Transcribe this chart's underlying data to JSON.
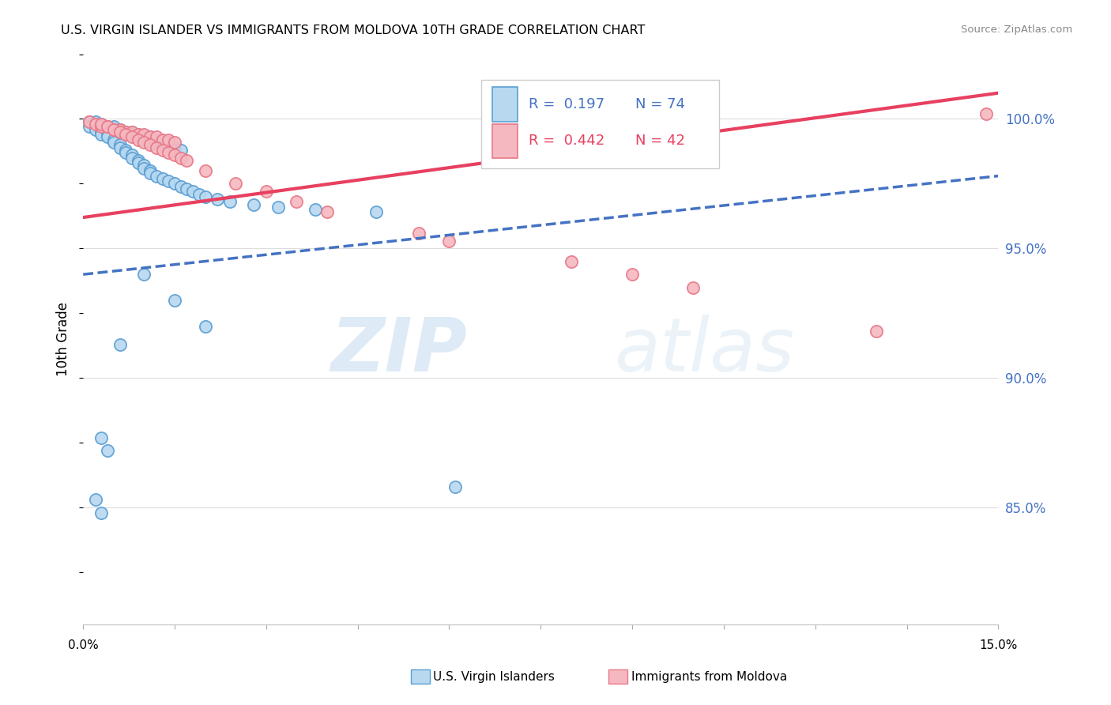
{
  "title": "U.S. VIRGIN ISLANDER VS IMMIGRANTS FROM MOLDOVA 10TH GRADE CORRELATION CHART",
  "source": "Source: ZipAtlas.com",
  "ylabel": "10th Grade",
  "yaxis_labels": [
    "100.0%",
    "95.0%",
    "90.0%",
    "85.0%"
  ],
  "yaxis_values": [
    1.0,
    0.95,
    0.9,
    0.85
  ],
  "xmin": 0.0,
  "xmax": 0.15,
  "ymin": 0.805,
  "ymax": 1.025,
  "color_blue_face": "#b8d8f0",
  "color_blue_edge": "#5a9fd4",
  "color_pink_face": "#f5b8c0",
  "color_pink_edge": "#e87888",
  "color_blue_line": "#4472c4",
  "color_pink_line": "#e84060",
  "watermark_zip": "ZIP",
  "watermark_atlas": "atlas",
  "blue_x": [
    0.001,
    0.002,
    0.002,
    0.003,
    0.003,
    0.004,
    0.004,
    0.005,
    0.005,
    0.006,
    0.006,
    0.007,
    0.007,
    0.008,
    0.008,
    0.009,
    0.009,
    0.01,
    0.01,
    0.011,
    0.011,
    0.012,
    0.012,
    0.013,
    0.013,
    0.014,
    0.014,
    0.015,
    0.015,
    0.016,
    0.001,
    0.002,
    0.003,
    0.003,
    0.004,
    0.004,
    0.005,
    0.005,
    0.006,
    0.006,
    0.007,
    0.007,
    0.008,
    0.008,
    0.009,
    0.009,
    0.01,
    0.01,
    0.011,
    0.011,
    0.012,
    0.013,
    0.014,
    0.015,
    0.016,
    0.017,
    0.018,
    0.019,
    0.02,
    0.022,
    0.024,
    0.028,
    0.032,
    0.038,
    0.048,
    0.01,
    0.015,
    0.02,
    0.003,
    0.004,
    0.002,
    0.003,
    0.061,
    0.006
  ],
  "blue_y": [
    0.999,
    0.999,
    0.998,
    0.998,
    0.997,
    0.997,
    0.996,
    0.997,
    0.996,
    0.996,
    0.995,
    0.995,
    0.994,
    0.995,
    0.994,
    0.994,
    0.993,
    0.993,
    0.992,
    0.992,
    0.993,
    0.991,
    0.992,
    0.991,
    0.99,
    0.99,
    0.991,
    0.989,
    0.988,
    0.988,
    0.997,
    0.996,
    0.995,
    0.994,
    0.994,
    0.993,
    0.992,
    0.991,
    0.99,
    0.989,
    0.988,
    0.987,
    0.986,
    0.985,
    0.984,
    0.983,
    0.982,
    0.981,
    0.98,
    0.979,
    0.978,
    0.977,
    0.976,
    0.975,
    0.974,
    0.973,
    0.972,
    0.971,
    0.97,
    0.969,
    0.968,
    0.967,
    0.966,
    0.965,
    0.964,
    0.94,
    0.93,
    0.92,
    0.877,
    0.872,
    0.853,
    0.848,
    0.858,
    0.913
  ],
  "pink_x": [
    0.001,
    0.002,
    0.003,
    0.004,
    0.005,
    0.006,
    0.007,
    0.008,
    0.009,
    0.01,
    0.011,
    0.012,
    0.013,
    0.014,
    0.015,
    0.003,
    0.004,
    0.005,
    0.006,
    0.007,
    0.008,
    0.009,
    0.01,
    0.011,
    0.012,
    0.013,
    0.014,
    0.015,
    0.016,
    0.017,
    0.02,
    0.025,
    0.03,
    0.035,
    0.04,
    0.055,
    0.06,
    0.08,
    0.09,
    0.1,
    0.13,
    0.148
  ],
  "pink_y": [
    0.999,
    0.998,
    0.997,
    0.997,
    0.996,
    0.996,
    0.995,
    0.995,
    0.994,
    0.994,
    0.993,
    0.993,
    0.992,
    0.992,
    0.991,
    0.998,
    0.997,
    0.996,
    0.995,
    0.994,
    0.993,
    0.992,
    0.991,
    0.99,
    0.989,
    0.988,
    0.987,
    0.986,
    0.985,
    0.984,
    0.98,
    0.975,
    0.972,
    0.968,
    0.964,
    0.956,
    0.953,
    0.945,
    0.94,
    0.935,
    0.918,
    1.002
  ],
  "blue_line_x": [
    0.0,
    0.15
  ],
  "blue_line_y": [
    0.94,
    0.978
  ],
  "pink_line_x": [
    0.0,
    0.15
  ],
  "pink_line_y": [
    0.962,
    1.01
  ]
}
